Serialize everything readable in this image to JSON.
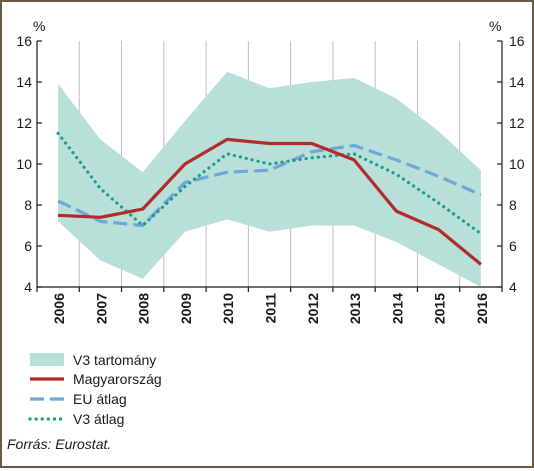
{
  "chart_data": {
    "type": "line",
    "categories": [
      "2006",
      "2007",
      "2008",
      "2009",
      "2010",
      "2011",
      "2012",
      "2013",
      "2014",
      "2015",
      "2016"
    ],
    "ylim": [
      4,
      16
    ],
    "yticks": [
      4,
      6,
      8,
      10,
      12,
      14,
      16
    ],
    "unit_left": "%",
    "unit_right": "%",
    "band": {
      "name": "V3 tartomány",
      "color": "#b9dfd9",
      "upper": [
        13.9,
        11.2,
        9.6,
        12.1,
        14.5,
        13.7,
        14.0,
        14.2,
        13.2,
        11.6,
        9.7
      ],
      "lower": [
        7.2,
        5.3,
        4.4,
        6.7,
        7.3,
        6.7,
        7.0,
        7.0,
        6.2,
        5.1,
        4.0
      ]
    },
    "series": [
      {
        "name": "Magyarország",
        "style": "solid",
        "color": "#b22a2a",
        "values": [
          7.5,
          7.4,
          7.8,
          10.0,
          11.2,
          11.0,
          11.0,
          10.2,
          7.7,
          6.8,
          5.1
        ]
      },
      {
        "name": "EU átlag",
        "style": "dashed",
        "color": "#6fa7d9",
        "values": [
          8.2,
          7.2,
          7.0,
          9.1,
          9.6,
          9.7,
          10.6,
          10.9,
          10.2,
          9.4,
          8.5
        ]
      },
      {
        "name": "V3 átlag",
        "style": "dotted",
        "color": "#1a9c8c",
        "values": [
          11.5,
          8.8,
          7.0,
          8.9,
          10.5,
          10.0,
          10.3,
          10.5,
          9.5,
          8.1,
          6.6
        ]
      }
    ],
    "legend_position": "bottom-left",
    "grid": "vertical"
  },
  "source_note": "Forrás: Eurostat."
}
